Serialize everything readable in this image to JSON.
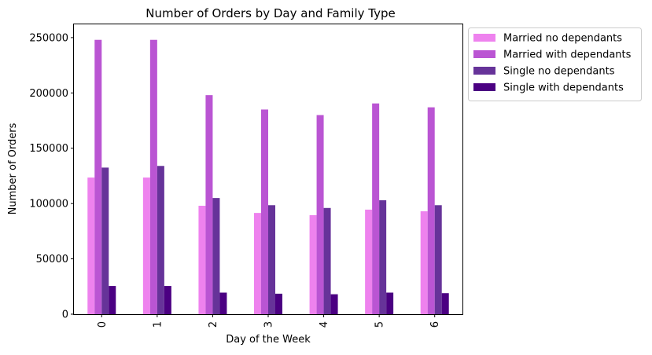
{
  "chart_data": {
    "type": "bar",
    "title": "Number of Orders by Day and Family Type",
    "xlabel": "Day of the Week",
    "ylabel": "Number of Orders",
    "categories": [
      "0",
      "1",
      "2",
      "3",
      "4",
      "5",
      "6"
    ],
    "ylim": [
      0,
      262000
    ],
    "yticks": [
      0,
      50000,
      100000,
      150000,
      200000,
      250000
    ],
    "ytick_labels": [
      "0",
      "50000",
      "100000",
      "150000",
      "200000",
      "250000"
    ],
    "grid": false,
    "legend_position": "outside-upper-right",
    "series": [
      {
        "name": "Married no dependants",
        "color": "#ee82ee",
        "values": [
          123500,
          123500,
          98000,
          91500,
          89500,
          94500,
          93000
        ]
      },
      {
        "name": "Married with dependants",
        "color": "#ba55d3",
        "values": [
          248000,
          248000,
          198000,
          185000,
          180000,
          190500,
          187000
        ]
      },
      {
        "name": "Single no dependants",
        "color": "#663399",
        "values": [
          132500,
          134000,
          105000,
          98500,
          96000,
          103000,
          98500
        ]
      },
      {
        "name": "Single with dependants",
        "color": "#4b0082",
        "values": [
          25500,
          25500,
          19500,
          18500,
          18000,
          19500,
          19000
        ]
      }
    ]
  }
}
